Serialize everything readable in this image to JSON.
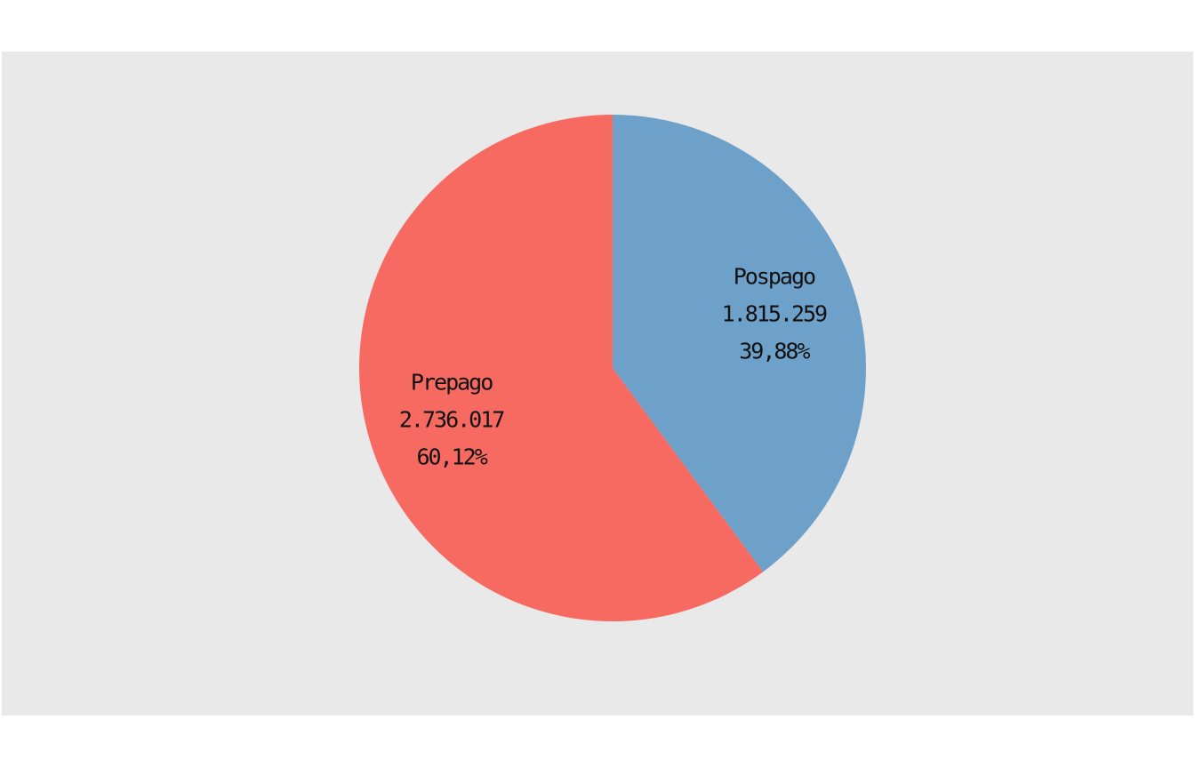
{
  "chart_data": {
    "type": "pie",
    "title": "",
    "start_angle_deg": 0,
    "direction": "clockwise",
    "background": "#e9e9e9",
    "slices": [
      {
        "name": "Pospago",
        "value": 1815259,
        "value_label": "1.815.259",
        "percent": 39.88,
        "percent_label": "39,88%",
        "color": "#6ea1c9"
      },
      {
        "name": "Prepago",
        "value": 2736017,
        "value_label": "2.736.017",
        "percent": 60.12,
        "percent_label": "60,12%",
        "color": "#f66a61"
      }
    ]
  }
}
